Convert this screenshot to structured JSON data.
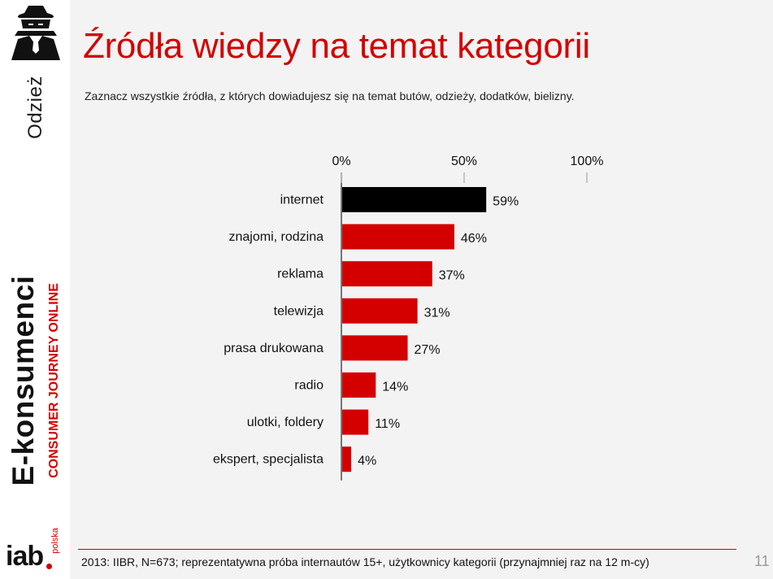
{
  "section": "Odzież",
  "brand": {
    "main": "E-konsumenci",
    "sub": "CONSUMER JOURNEY ONLINE"
  },
  "logo": {
    "text": "iab",
    "suffix": "polska"
  },
  "title": "Źródła wiedzy na temat kategorii",
  "subtitle": "Zaznacz wszystkie źródła, z których dowiadujesz się na temat butów, odzieży, dodatków, bielizny.",
  "footer": {
    "source": "2013: IIBR, N=673; reprezentatywna próba internautów 15+, użytkownicy kategorii (przynajmniej raz na 12 m-cy)",
    "page": "11"
  },
  "colors": {
    "accent": "#d40000",
    "highlight": "#000000"
  },
  "icons": {
    "spy": "spy-icon"
  },
  "chart_data": {
    "type": "bar",
    "orientation": "horizontal",
    "categories": [
      "internet",
      "znajomi, rodzina",
      "reklama",
      "telewizja",
      "prasa drukowana",
      "radio",
      "ulotki, foldery",
      "ekspert, specjalista"
    ],
    "values": [
      59,
      46,
      37,
      31,
      27,
      14,
      11,
      4
    ],
    "value_labels": [
      "59%",
      "46%",
      "37%",
      "31%",
      "27%",
      "14%",
      "11%",
      "4%"
    ],
    "highlight_index": 0,
    "xlim": [
      0,
      100
    ],
    "ticks": [
      0,
      50,
      100
    ],
    "tick_labels": [
      "0%",
      "50%",
      "100%"
    ],
    "axis_position": "top",
    "grid": false
  }
}
